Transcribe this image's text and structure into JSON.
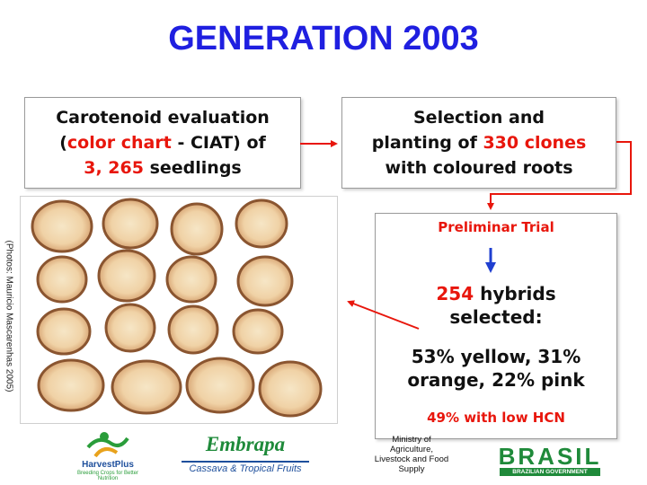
{
  "title": "GENERATION 2003",
  "left_box": {
    "line1": "Carotenoid evaluation",
    "line2_open": "(",
    "line2_red": "color chart",
    "line2_rest": " - CIAT) of",
    "line3_red": "3, 265",
    "line3_rest": " seedlings"
  },
  "right_box": {
    "line1": "Selection and",
    "line2_pre": "planting of ",
    "line2_red": "330 clones",
    "line3": "with coloured roots"
  },
  "trial_box": {
    "title": "Preliminar Trial",
    "hybrids_red": "254",
    "hybrids_rest": " hybrids",
    "hybrids_line2": "selected:",
    "colors_line1": "53% yellow,   31%",
    "colors_line2": "orange,   22% pink",
    "hcn": "49% with low HCN"
  },
  "photo_credit": "(Photos: Mauricio Mascarenhas 2005)",
  "footer": {
    "harvestplus_name": "HarvestPlus",
    "harvestplus_tag": "Breeding Crops for Better Nutrition",
    "embrapa_name": "Embrapa",
    "embrapa_sub": "Cassava & Tropical Fruits",
    "ministry_line1": "Ministry of Agriculture,",
    "ministry_line2": "Livestock and Food",
    "ministry_line3": "Supply",
    "brasil_name": "BRASIL",
    "brasil_gov": "BRAZILIAN GOVERNMENT"
  },
  "colors": {
    "title_blue": "#1f1fe0",
    "accent_red": "#e8160c",
    "trial_arrow_blue": "#1f3fd0",
    "box_border": "#9a9a9a"
  }
}
